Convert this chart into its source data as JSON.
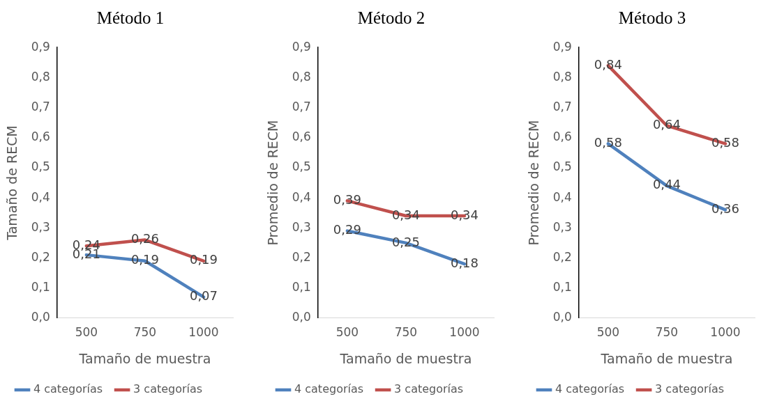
{
  "chart_data": [
    {
      "type": "line",
      "title": "Método 1",
      "xlabel": "Tamaño de muestra",
      "ylabel": "Tamaño de RECM",
      "categories": [
        "500",
        "750",
        "1000"
      ],
      "ylim": [
        0,
        0.9
      ],
      "yticks": [
        {
          "value": 0,
          "label": "0,0"
        },
        {
          "value": 0.1,
          "label": "0,1"
        },
        {
          "value": 0.2,
          "label": "0,2"
        },
        {
          "value": 0.3,
          "label": "0,3"
        },
        {
          "value": 0.4,
          "label": "0,4"
        },
        {
          "value": 0.5,
          "label": "0,5"
        },
        {
          "value": 0.6,
          "label": "0,6"
        },
        {
          "value": 0.7,
          "label": "0,7"
        },
        {
          "value": 0.8,
          "label": "0,8"
        },
        {
          "value": 0.9,
          "label": "0,9"
        }
      ],
      "legend": "bottom",
      "series": [
        {
          "name": "4 categorías",
          "color": "#4f81bd",
          "values": [
            0.21,
            0.19,
            0.07
          ],
          "value_labels": [
            "0,21",
            "0,19",
            "0,07"
          ]
        },
        {
          "name": "3 categorías",
          "color": "#c0504d",
          "values": [
            0.24,
            0.26,
            0.19
          ],
          "value_labels": [
            "0,24",
            "0,26",
            "0,19"
          ]
        }
      ]
    },
    {
      "type": "line",
      "title": "Método 2",
      "xlabel": "Tamaño de muestra",
      "ylabel": "Promedio de RECM",
      "categories": [
        "500",
        "750",
        "1000"
      ],
      "ylim": [
        0,
        0.9
      ],
      "yticks": [
        {
          "value": 0,
          "label": "0,0"
        },
        {
          "value": 0.1,
          "label": "0,1"
        },
        {
          "value": 0.2,
          "label": "0,2"
        },
        {
          "value": 0.3,
          "label": "0,3"
        },
        {
          "value": 0.4,
          "label": "0,4"
        },
        {
          "value": 0.5,
          "label": "0,5"
        },
        {
          "value": 0.6,
          "label": "0,6"
        },
        {
          "value": 0.7,
          "label": "0,7"
        },
        {
          "value": 0.8,
          "label": "0,8"
        },
        {
          "value": 0.9,
          "label": "0,9"
        }
      ],
      "legend": "bottom",
      "series": [
        {
          "name": "4 categorías",
          "color": "#4f81bd",
          "values": [
            0.29,
            0.25,
            0.18
          ],
          "value_labels": [
            "0,29",
            "0,25",
            "0,18"
          ]
        },
        {
          "name": "3 categorías",
          "color": "#c0504d",
          "values": [
            0.39,
            0.34,
            0.34
          ],
          "value_labels": [
            "0,39",
            "0,34",
            "0,34"
          ]
        }
      ]
    },
    {
      "type": "line",
      "title": "Método 3",
      "xlabel": "Tamaño de muestra",
      "ylabel": "Promedio de RECM",
      "categories": [
        "500",
        "750",
        "1000"
      ],
      "ylim": [
        0,
        0.9
      ],
      "yticks": [
        {
          "value": 0,
          "label": "0,0"
        },
        {
          "value": 0.1,
          "label": "0,1"
        },
        {
          "value": 0.2,
          "label": "0,2"
        },
        {
          "value": 0.3,
          "label": "0,3"
        },
        {
          "value": 0.4,
          "label": "0,4"
        },
        {
          "value": 0.5,
          "label": "0,5"
        },
        {
          "value": 0.6,
          "label": "0,6"
        },
        {
          "value": 0.7,
          "label": "0,7"
        },
        {
          "value": 0.8,
          "label": "0,8"
        },
        {
          "value": 0.9,
          "label": "0,9"
        }
      ],
      "legend": "bottom",
      "series": [
        {
          "name": "4 categorías",
          "color": "#4f81bd",
          "values": [
            0.58,
            0.44,
            0.36
          ],
          "value_labels": [
            "0,58",
            "0,44",
            "0,36"
          ]
        },
        {
          "name": "3 categorías",
          "color": "#c0504d",
          "values": [
            0.84,
            0.64,
            0.58
          ],
          "value_labels": [
            "0,84",
            "0,64",
            "0,58"
          ]
        }
      ]
    }
  ]
}
